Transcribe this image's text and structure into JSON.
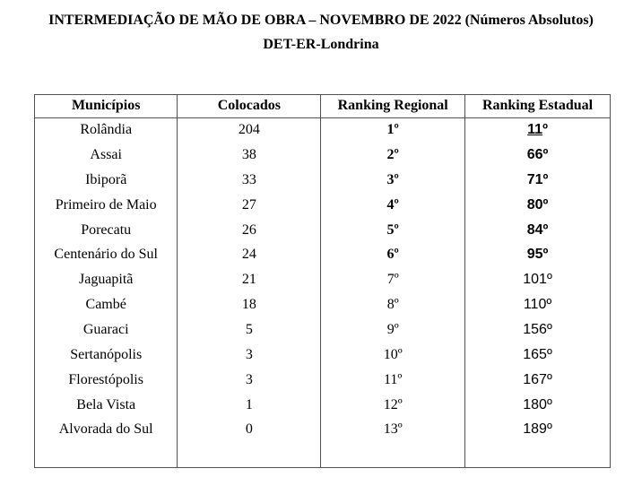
{
  "page": {
    "title": "INTERMEDIAÇÃO DE MÃO DE OBRA – NOVEMBRO DE 2022 (Números Absolutos)",
    "subtitle": "DET-ER-Londrina"
  },
  "table": {
    "columns": [
      "Municípios",
      "Colocados",
      "Ranking Regional",
      "Ranking Estadual"
    ],
    "rows": [
      {
        "municipio": "Rolândia",
        "colocados": "204",
        "ranking_regional": "1º",
        "ranking_estadual": "11º",
        "bold": true,
        "estadual_underline": true
      },
      {
        "municipio": "Assai",
        "colocados": "38",
        "ranking_regional": "2º",
        "ranking_estadual": "66º",
        "bold": true,
        "estadual_underline": false
      },
      {
        "municipio": "Ibiporã",
        "colocados": "33",
        "ranking_regional": "3º",
        "ranking_estadual": "71º",
        "bold": true,
        "estadual_underline": false
      },
      {
        "municipio": "Primeiro de Maio",
        "colocados": "27",
        "ranking_regional": "4º",
        "ranking_estadual": "80º",
        "bold": true,
        "estadual_underline": false
      },
      {
        "municipio": "Porecatu",
        "colocados": "26",
        "ranking_regional": "5º",
        "ranking_estadual": "84º",
        "bold": true,
        "estadual_underline": false
      },
      {
        "municipio": "Centenário do Sul",
        "colocados": "24",
        "ranking_regional": "6º",
        "ranking_estadual": "95º",
        "bold": true,
        "estadual_underline": false
      },
      {
        "municipio": "Jaguapitã",
        "colocados": "21",
        "ranking_regional": "7º",
        "ranking_estadual": "101º",
        "bold": false,
        "estadual_underline": false
      },
      {
        "municipio": "Cambé",
        "colocados": "18",
        "ranking_regional": "8º",
        "ranking_estadual": "110º",
        "bold": false,
        "estadual_underline": false
      },
      {
        "municipio": "Guaraci",
        "colocados": "5",
        "ranking_regional": "9º",
        "ranking_estadual": "156º",
        "bold": false,
        "estadual_underline": false
      },
      {
        "municipio": "Sertanópolis",
        "colocados": "3",
        "ranking_regional": "10º",
        "ranking_estadual": "165º",
        "bold": false,
        "estadual_underline": false
      },
      {
        "municipio": "Florestópolis",
        "colocados": "3",
        "ranking_regional": "11º",
        "ranking_estadual": "167º",
        "bold": false,
        "estadual_underline": false
      },
      {
        "municipio": "Bela Vista",
        "colocados": "1",
        "ranking_regional": "12º",
        "ranking_estadual": "180º",
        "bold": false,
        "estadual_underline": false
      },
      {
        "municipio": "Alvorada do Sul",
        "colocados": "0",
        "ranking_regional": "13º",
        "ranking_estadual": "189º",
        "bold": false,
        "estadual_underline": false
      }
    ]
  },
  "colors": {
    "background": "#ffffff",
    "text": "#000000",
    "table_border": "#515151"
  }
}
